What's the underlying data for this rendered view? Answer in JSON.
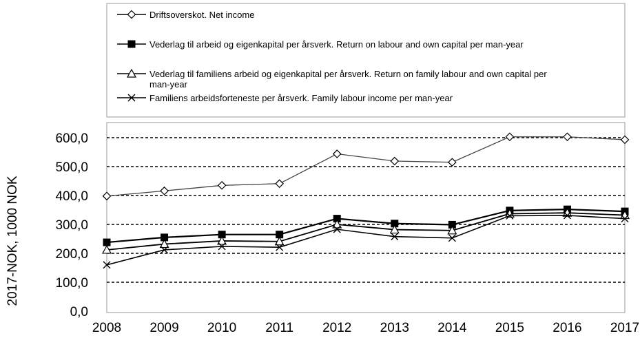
{
  "chart_data": {
    "type": "line",
    "title": "",
    "xlabel": "",
    "ylabel": "2017-NOK, 1000 NOK",
    "x": [
      "2008",
      "2009",
      "2010",
      "2011",
      "2012",
      "2013",
      "2014",
      "2015",
      "2016",
      "2017"
    ],
    "ylim": [
      0,
      600
    ],
    "yticks": [
      "0,0",
      "100,0",
      "200,0",
      "300,0",
      "400,0",
      "500,0",
      "600,0"
    ],
    "grid": "horizontal dashed",
    "legend_position": "top",
    "series": [
      {
        "name": "Driftsoverskot. Net income",
        "marker": "diamond-open",
        "values": [
          398,
          416,
          435,
          441,
          544,
          519,
          515,
          603,
          603,
          593
        ]
      },
      {
        "name": "Vederlag til arbeid og eigenkapital per årsverk. Return on labour and own capital per man-year",
        "marker": "square-filled",
        "values": [
          238,
          255,
          265,
          265,
          320,
          303,
          299,
          348,
          352,
          345
        ]
      },
      {
        "name": "Vederlag til familiens arbeid og eigenkapital per årsverk. Return on family labour and own capital per man-year",
        "marker": "triangle-open",
        "values": [
          212,
          232,
          243,
          241,
          300,
          282,
          279,
          337,
          340,
          332
        ]
      },
      {
        "name": "Familiens arbeidsforteneste per årsverk.  Family labour income per man-year",
        "marker": "x",
        "values": [
          160,
          212,
          224,
          221,
          283,
          258,
          253,
          330,
          331,
          320
        ]
      }
    ]
  }
}
